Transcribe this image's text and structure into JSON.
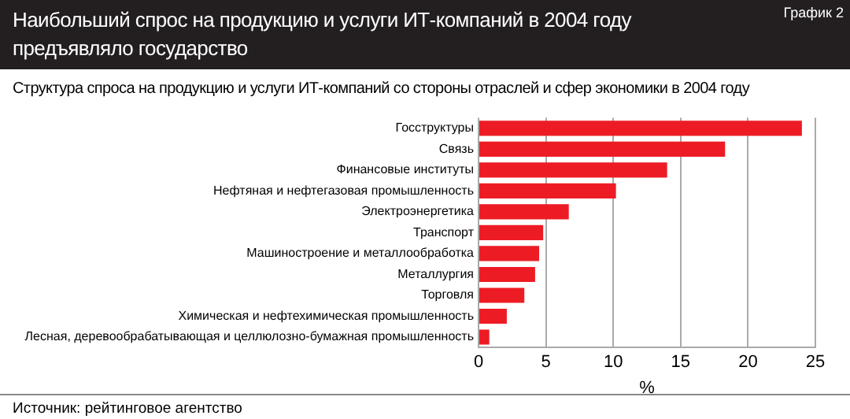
{
  "chart_data": {
    "type": "bar",
    "orientation": "horizontal",
    "title": "Наибольший спрос на продукцию и услуги ИТ-компаний в 2004 году предъявляло государство",
    "subtitle": "Структура спроса на продукцию и услуги ИТ-компаний со стороны отраслей и сфер экономики  в 2004 году",
    "xlabel": "%",
    "annotations": [
      "График 2",
      "Источник: рейтинговое агентство"
    ],
    "categories": [
      "Госструктуры",
      "Связь",
      "Финансовые институты",
      "Нефтяная и нефтегазовая промышленность",
      "Электроэнергетика",
      "Транспорт",
      "Машиностроение и металлообработка",
      "Металлургия",
      "Торговля",
      "Химическая и нефтехимическая промышленность",
      "Лесная, деревообрабатывающая и целлюлозно-бумажная промышленность"
    ],
    "values": [
      24.0,
      18.3,
      14.0,
      10.2,
      6.7,
      4.8,
      4.5,
      4.2,
      3.4,
      2.1,
      0.8
    ],
    "color": "#ed1c24",
    "xlim": [
      0,
      25
    ],
    "xticks": [
      0,
      5,
      10,
      15,
      20,
      25
    ],
    "grid": "x",
    "legend": false
  }
}
